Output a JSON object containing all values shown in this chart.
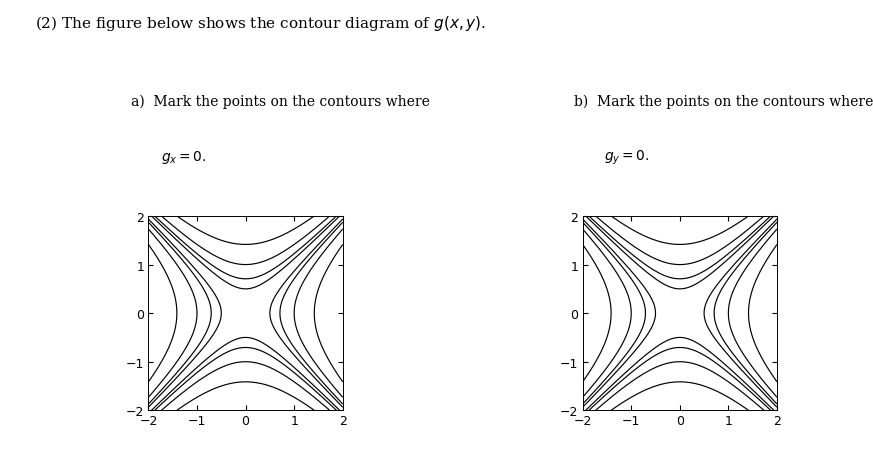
{
  "header": "(2) The figure below shows the contour diagram of $g(x, y)$.",
  "label_a_line1": "a)  Mark the points on the contours where",
  "label_a_line2": "$g_x = 0.$",
  "label_b_line1": "b)  Mark the points on the contours where",
  "label_b_line2": "$g_y = 0.$",
  "xlim": [
    -2.0,
    2.0
  ],
  "ylim": [
    -2.0,
    2.0
  ],
  "xticks": [
    -2,
    -1,
    0,
    1,
    2
  ],
  "yticks": [
    -2,
    -1,
    0,
    1,
    2
  ],
  "contour_levels": [
    -8,
    -4,
    -2,
    -1,
    -0.5,
    -0.25,
    0.25,
    0.5,
    1,
    2,
    4,
    8
  ],
  "background_color": "#ffffff",
  "line_color": "#000000",
  "figsize": [
    8.73,
    4.52
  ],
  "dpi": 100,
  "header_fontsize": 11,
  "label_fontsize": 10,
  "tick_fontsize": 9,
  "linewidth": 0.85
}
